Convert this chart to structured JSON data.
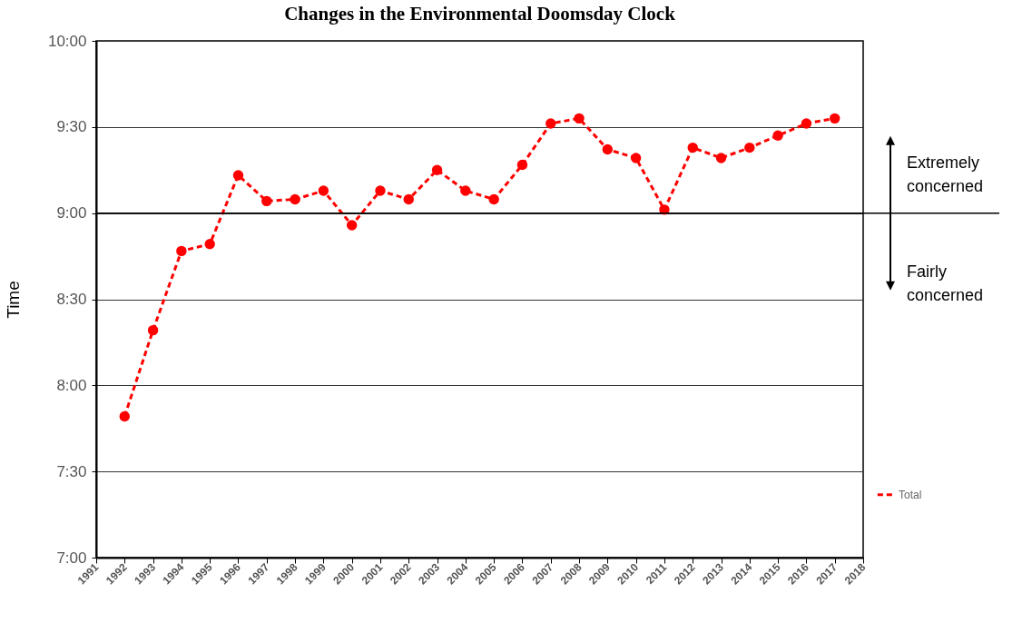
{
  "chart_data": {
    "type": "line",
    "title": "Changes in the Environmental Doomsday Clock",
    "ylabel": "Time",
    "x": [
      1992,
      1993,
      1994,
      1995,
      1996,
      1997,
      1998,
      1999,
      2000,
      2001,
      2002,
      2003,
      2004,
      2005,
      2006,
      2007,
      2008,
      2009,
      2010,
      2011,
      2012,
      2013,
      2014,
      2015,
      2016,
      2017
    ],
    "series": [
      {
        "name": "Total",
        "color": "#ff0000",
        "values": [
          7.82,
          8.32,
          8.78,
          8.82,
          9.22,
          9.07,
          9.08,
          9.13,
          8.93,
          9.13,
          9.08,
          9.25,
          9.13,
          9.08,
          9.28,
          9.52,
          9.55,
          9.37,
          9.32,
          9.02,
          9.38,
          9.32,
          9.38,
          9.45,
          9.52,
          9.55
        ]
      }
    ],
    "xlim": [
      1991,
      2018
    ],
    "xticks": [
      1991,
      1992,
      1993,
      1994,
      1995,
      1996,
      1997,
      1998,
      1999,
      2000,
      2001,
      2002,
      2003,
      2004,
      2005,
      2006,
      2007,
      2008,
      2009,
      2010,
      2011,
      2012,
      2013,
      2014,
      2015,
      2016,
      2017,
      2018
    ],
    "ylim": [
      7,
      10
    ],
    "yticks": [
      {
        "value": 7,
        "label": "7:00"
      },
      {
        "value": 7.5,
        "label": "7:30"
      },
      {
        "value": 8,
        "label": "8:00"
      },
      {
        "value": 8.5,
        "label": "8:30"
      },
      {
        "value": 9,
        "label": "9:00"
      },
      {
        "value": 9.5,
        "label": "9:30"
      },
      {
        "value": 10,
        "label": "10:00"
      }
    ],
    "ref_lines": [
      {
        "axis": "y",
        "value": 9,
        "color": "#000000"
      }
    ],
    "annotations": [
      "Extremely concerned",
      "Fairly concerned"
    ],
    "grid": "y",
    "legend": "right",
    "marker": "circle",
    "line_style": "dashed"
  }
}
